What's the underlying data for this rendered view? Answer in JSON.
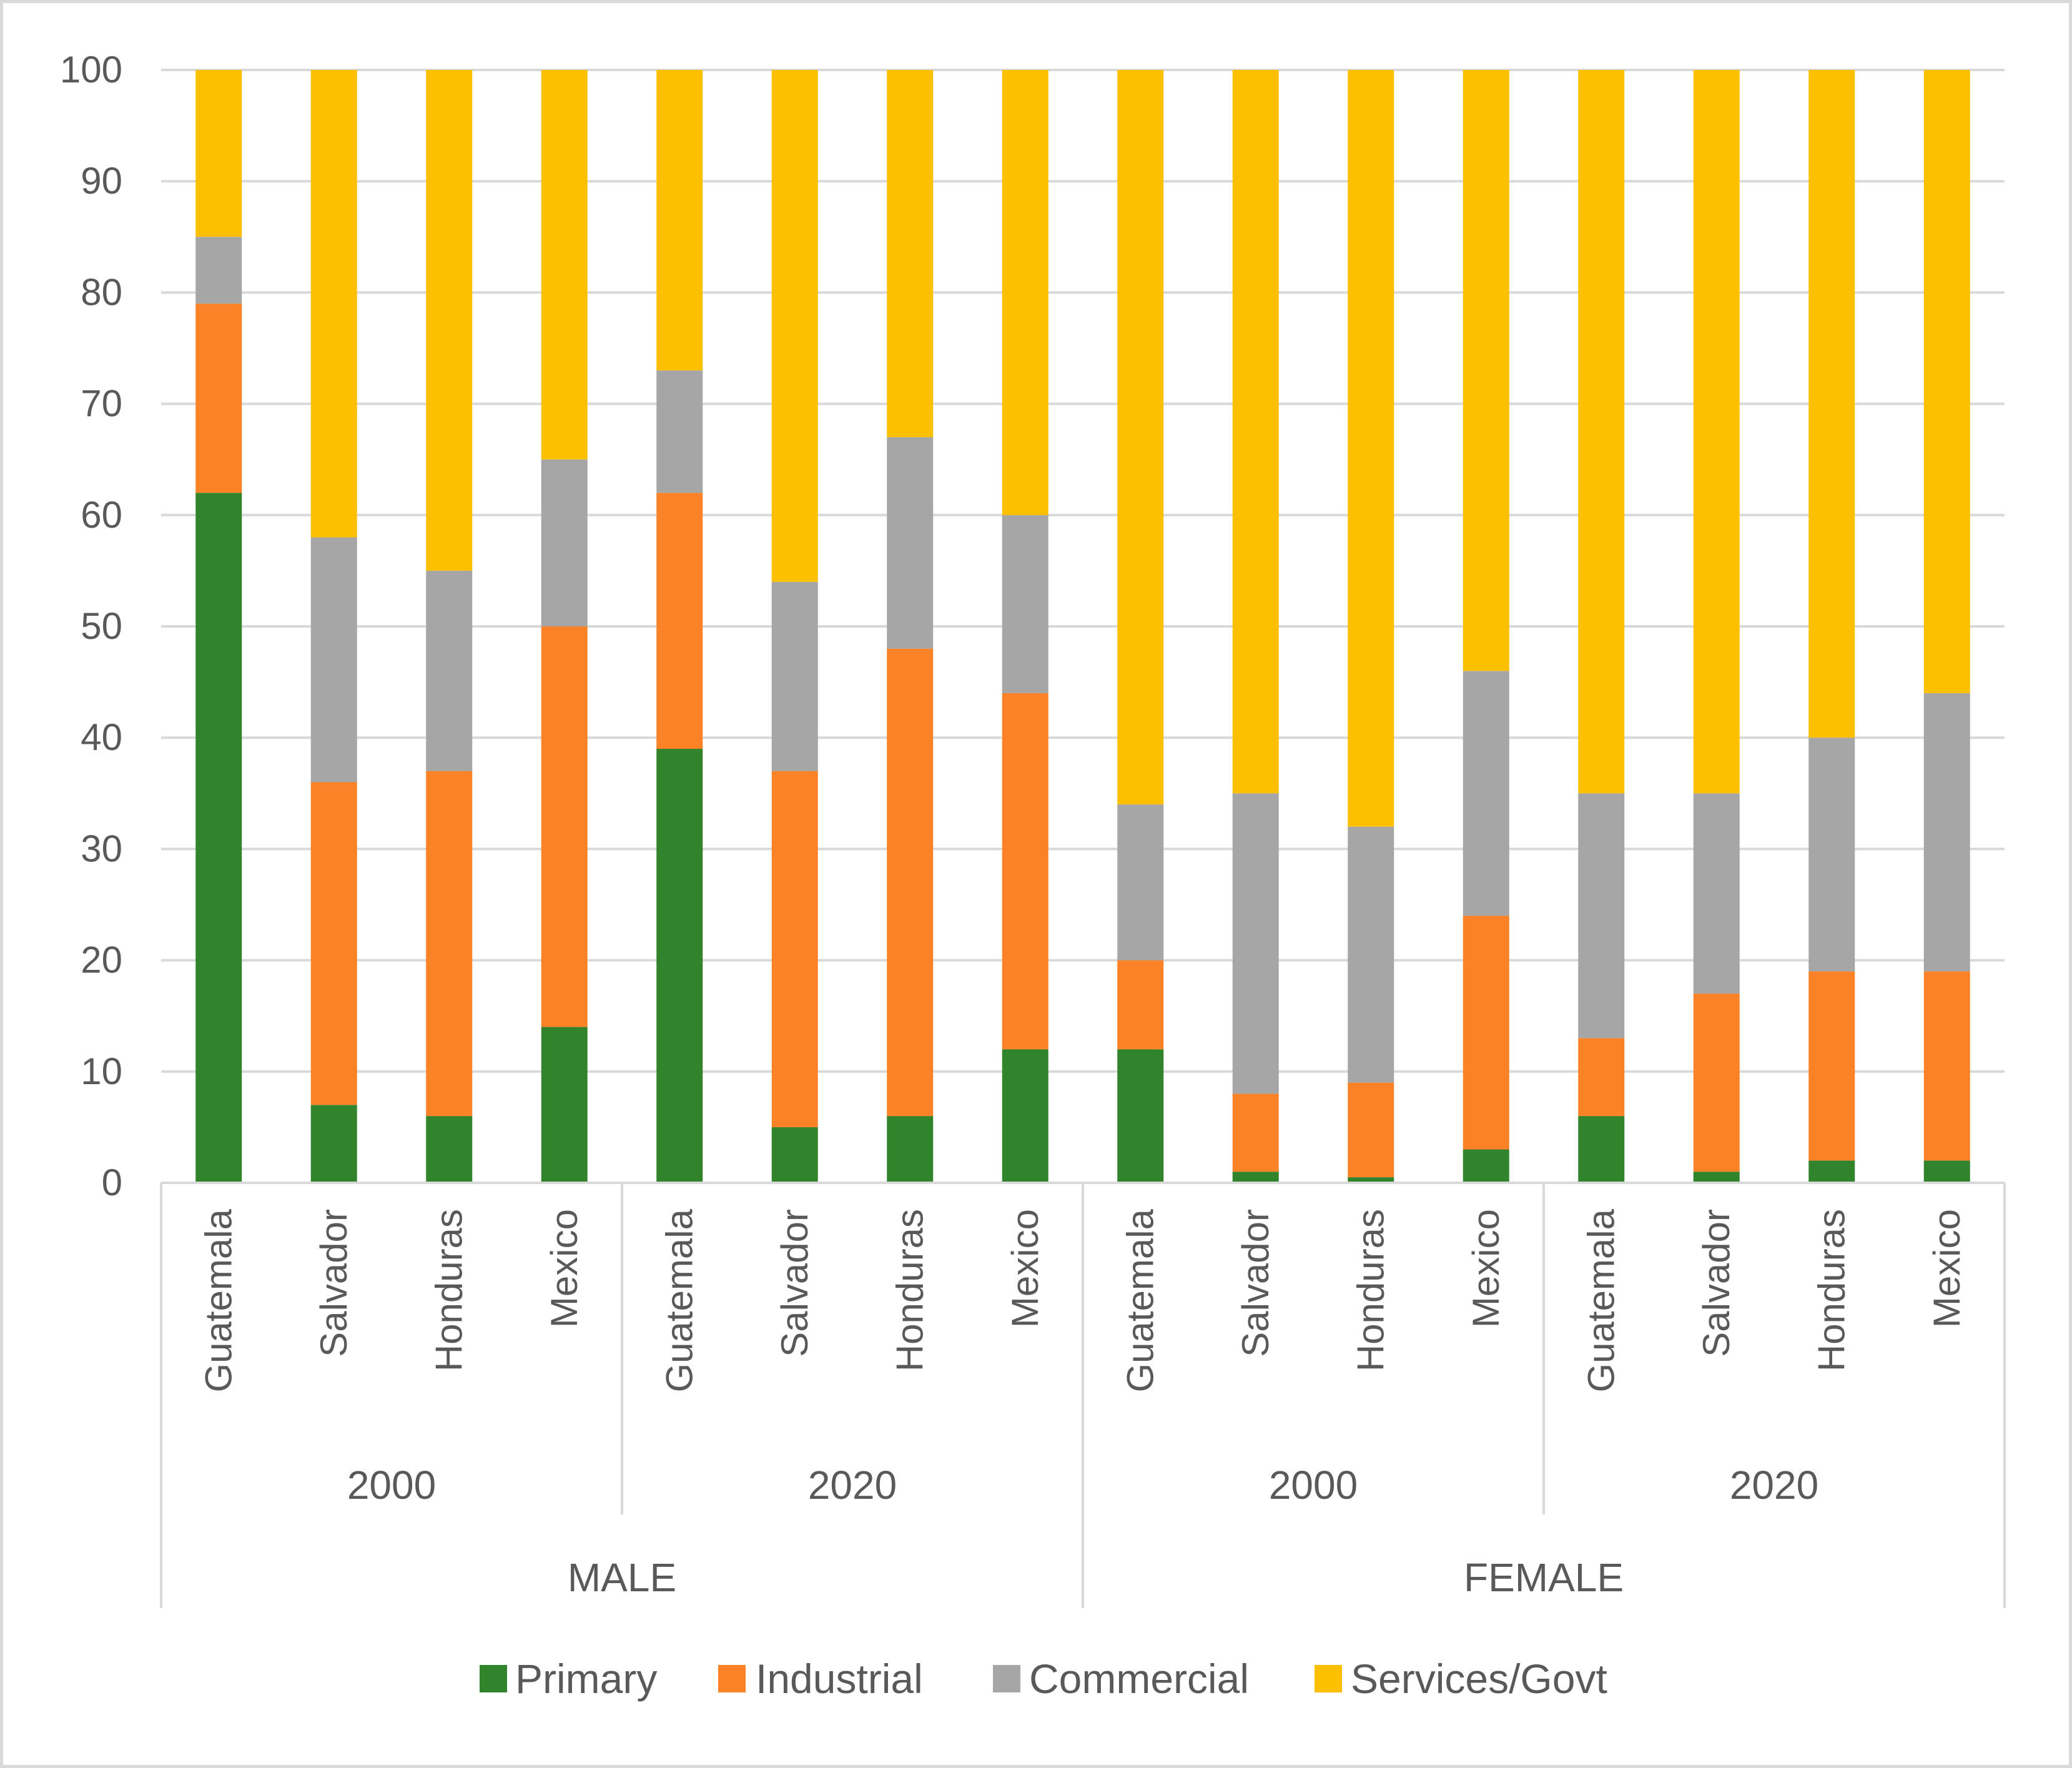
{
  "chart_data": {
    "type": "bar",
    "stacked": true,
    "title": "",
    "xlabel": "",
    "ylabel": "",
    "ylim": [
      0,
      100
    ],
    "yticks": [
      0,
      10,
      20,
      30,
      40,
      50,
      60,
      70,
      80,
      90,
      100
    ],
    "grid": true,
    "legend_position": "bottom",
    "groups": [
      {
        "label": "MALE",
        "years": [
          {
            "label": "2000",
            "categories": [
              "Guatemala",
              "Salvador",
              "Honduras",
              "Mexico"
            ]
          },
          {
            "label": "2020",
            "categories": [
              "Guatemala",
              "Salvador",
              "Honduras",
              "Mexico"
            ]
          }
        ]
      },
      {
        "label": "FEMALE",
        "years": [
          {
            "label": "2000",
            "categories": [
              "Guatemala",
              "Salvador",
              "Honduras",
              "Mexico"
            ]
          },
          {
            "label": "2020",
            "categories": [
              "Guatemala",
              "Salvador",
              "Honduras",
              "Mexico"
            ]
          }
        ]
      }
    ],
    "categories": [
      "Guatemala",
      "Salvador",
      "Honduras",
      "Mexico",
      "Guatemala",
      "Salvador",
      "Honduras",
      "Mexico",
      "Guatemala",
      "Salvador",
      "Honduras",
      "Mexico",
      "Guatemala",
      "Salvador",
      "Honduras",
      "Mexico"
    ],
    "series": [
      {
        "name": "Primary",
        "color": "#31842c",
        "values": [
          62,
          7,
          6,
          14,
          39,
          5,
          6,
          12,
          12,
          1,
          0.5,
          3,
          6,
          1,
          2,
          2
        ]
      },
      {
        "name": "Industrial",
        "color": "#fb8226",
        "values": [
          17,
          29,
          31,
          36,
          23,
          32,
          42,
          32,
          8,
          7,
          8.5,
          21,
          7,
          16,
          17,
          17
        ]
      },
      {
        "name": "Commercial",
        "color": "#a6a6a6",
        "values": [
          6,
          22,
          18,
          15,
          11,
          17,
          19,
          16,
          14,
          27,
          23,
          22,
          22,
          18,
          21,
          25
        ]
      },
      {
        "name": "Services/Govt",
        "color": "#fdc000",
        "values": [
          15,
          42,
          45,
          35,
          27,
          46,
          33,
          40,
          66,
          65,
          68,
          54,
          65,
          65,
          60,
          56
        ]
      }
    ]
  },
  "colors": {
    "gridline": "#d9d9d9",
    "axis_text": "#595959",
    "frame": "#d9d9d9"
  }
}
